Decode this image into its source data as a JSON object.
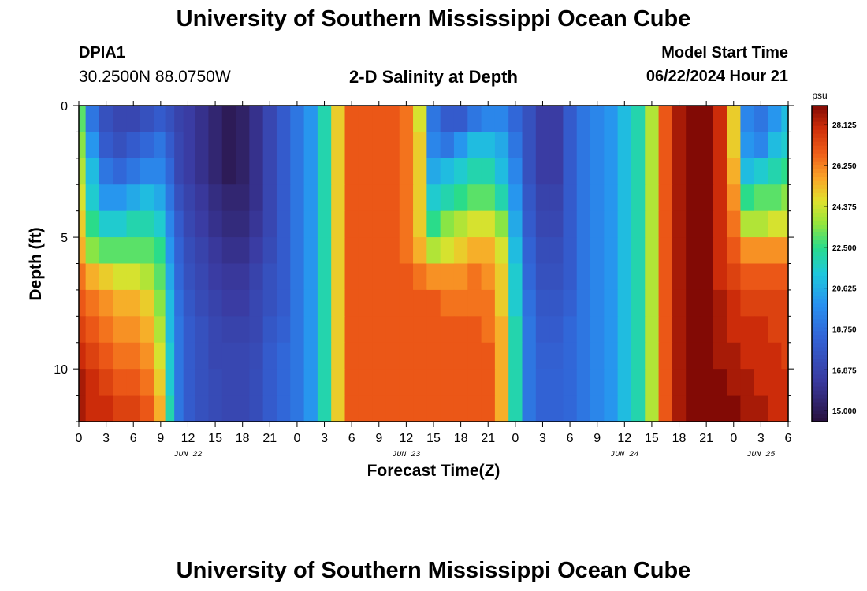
{
  "page": {
    "title": "University of Southern Mississippi Ocean Cube",
    "footer_title": "University of Southern Mississippi Ocean Cube",
    "station_id": "DPIA1",
    "station_coords": "30.2500N  88.0750W",
    "plot_title": "2-D Salinity at Depth",
    "model_start_label": "Model Start Time",
    "model_start_value": "06/22/2024 Hour 21"
  },
  "chart_data": {
    "type": "heatmap",
    "title": "2-D Salinity at Depth",
    "xlabel": "Forecast Time(Z)",
    "ylabel": "Depth (ft)",
    "x_range_hours": [
      0,
      78
    ],
    "y_range_ft": [
      0,
      12
    ],
    "y_ticks": [
      "0",
      "5",
      "10"
    ],
    "x_ticks": [
      "0",
      "3",
      "6",
      "9",
      "12",
      "15",
      "18",
      "21",
      "0",
      "3",
      "6",
      "9",
      "12",
      "15",
      "18",
      "21",
      "0",
      "3",
      "6",
      "9",
      "12",
      "15",
      "18",
      "21",
      "0",
      "3",
      "6"
    ],
    "day_labels": [
      {
        "label": "JUN 22",
        "hour": 12
      },
      {
        "label": "JUN 23",
        "hour": 36
      },
      {
        "label": "JUN 24",
        "hour": 60
      },
      {
        "label": "JUN 25",
        "hour": 75
      }
    ],
    "colorbar": {
      "unit": "psu",
      "min": 14.5,
      "max": 29.0,
      "labels": [
        "28.125",
        "26.250",
        "24.375",
        "22.500",
        "20.625",
        "18.750",
        "16.875",
        "15.000"
      ]
    },
    "depth_levels_ft": [
      0.5,
      1.5,
      2.5,
      3.5,
      4.5,
      5.5,
      6.5,
      7.5,
      8.5,
      9.5,
      10.5,
      11.5
    ],
    "time_hours": [
      0,
      1.5,
      3,
      4.5,
      6,
      7.5,
      9,
      10,
      11,
      12,
      13.5,
      15,
      16.5,
      18,
      19.5,
      21,
      22.5,
      24,
      25.5,
      27,
      28.5,
      30,
      31.5,
      33,
      34.5,
      36,
      37.5,
      39,
      40.5,
      42,
      43.5,
      45,
      46.5,
      48,
      49.5,
      51,
      52.5,
      54,
      55.5,
      57,
      58.5,
      60,
      61.5,
      63,
      64.5,
      66,
      67.5,
      69,
      70.5,
      72,
      73.5,
      75,
      76.5,
      78
    ],
    "salinity_psu": [
      [
        23.0,
        19.0,
        17.5,
        17.0,
        17.0,
        17.5,
        18.0,
        17.5,
        16.8,
        16.5,
        16.0,
        15.5,
        15.0,
        15.3,
        16.0,
        17.0,
        18.0,
        19.0,
        20.0,
        22.0,
        25.0,
        27.0,
        27.0,
        27.0,
        27.0,
        26.5,
        24.5,
        19.0,
        18.0,
        18.0,
        19.0,
        19.5,
        19.5,
        18.5,
        17.5,
        16.5,
        16.5,
        18.0,
        19.0,
        19.5,
        20.0,
        21.0,
        22.0,
        24.0,
        27.0,
        28.5,
        29.0,
        29.0,
        28.0,
        25.0,
        19.5,
        19.0,
        20.0,
        21.0
      ],
      [
        23.5,
        20.0,
        18.0,
        17.5,
        18.0,
        18.5,
        19.0,
        18.0,
        17.0,
        16.5,
        16.0,
        15.5,
        15.0,
        15.3,
        16.0,
        17.0,
        18.0,
        19.0,
        20.0,
        22.0,
        25.0,
        27.0,
        27.0,
        27.0,
        27.0,
        26.5,
        25.0,
        19.5,
        19.0,
        20.0,
        21.0,
        21.0,
        20.5,
        19.0,
        17.5,
        16.5,
        16.5,
        18.0,
        19.0,
        19.5,
        20.0,
        21.0,
        22.0,
        24.0,
        27.0,
        28.5,
        29.0,
        29.0,
        28.0,
        25.0,
        20.0,
        19.5,
        21.0,
        21.5
      ],
      [
        24.0,
        21.0,
        19.0,
        18.5,
        19.0,
        19.5,
        19.5,
        18.5,
        17.0,
        16.5,
        16.0,
        15.5,
        15.0,
        15.3,
        16.0,
        17.0,
        18.0,
        19.0,
        20.0,
        22.0,
        25.0,
        27.0,
        27.0,
        27.0,
        27.0,
        26.5,
        25.0,
        20.5,
        21.0,
        21.5,
        22.0,
        22.0,
        21.0,
        19.5,
        17.5,
        16.5,
        16.5,
        18.0,
        19.0,
        19.5,
        20.0,
        21.0,
        22.0,
        24.0,
        27.0,
        28.5,
        29.0,
        29.0,
        28.0,
        25.5,
        21.0,
        21.5,
        22.0,
        22.5
      ],
      [
        24.5,
        21.5,
        20.0,
        20.0,
        20.5,
        21.0,
        20.5,
        19.0,
        17.5,
        16.8,
        16.3,
        15.8,
        15.5,
        15.5,
        16.0,
        17.0,
        18.0,
        19.0,
        20.0,
        22.0,
        25.0,
        27.0,
        27.0,
        27.0,
        27.0,
        26.5,
        25.0,
        21.5,
        22.0,
        22.5,
        23.0,
        23.0,
        22.0,
        20.0,
        17.8,
        16.8,
        16.8,
        18.0,
        19.0,
        19.5,
        20.0,
        21.0,
        22.0,
        24.0,
        27.0,
        28.5,
        29.0,
        29.0,
        28.0,
        26.0,
        22.5,
        23.0,
        23.0,
        23.5
      ],
      [
        25.0,
        22.5,
        21.5,
        21.5,
        22.0,
        22.0,
        21.5,
        19.5,
        18.0,
        17.0,
        16.5,
        16.0,
        15.7,
        15.7,
        16.2,
        17.0,
        18.0,
        19.0,
        20.0,
        22.0,
        25.0,
        27.0,
        27.0,
        27.0,
        27.0,
        26.5,
        25.0,
        22.5,
        23.5,
        24.0,
        24.5,
        24.5,
        23.5,
        20.5,
        18.0,
        17.0,
        17.0,
        18.0,
        19.0,
        19.5,
        20.0,
        21.0,
        22.0,
        24.0,
        27.0,
        28.5,
        29.0,
        29.0,
        28.0,
        26.5,
        24.0,
        24.0,
        24.5,
        24.5
      ],
      [
        25.5,
        23.5,
        23.0,
        23.0,
        23.0,
        23.0,
        22.5,
        20.0,
        18.3,
        17.3,
        16.8,
        16.3,
        16.0,
        16.0,
        16.5,
        17.2,
        18.0,
        19.0,
        20.0,
        22.0,
        25.0,
        27.0,
        27.0,
        27.0,
        27.0,
        26.5,
        25.5,
        24.0,
        24.5,
        25.0,
        25.5,
        25.5,
        24.5,
        21.0,
        18.3,
        17.3,
        17.3,
        18.0,
        19.0,
        19.5,
        20.0,
        21.0,
        22.0,
        24.0,
        27.0,
        28.5,
        29.0,
        29.0,
        28.0,
        27.0,
        26.0,
        26.0,
        26.0,
        26.0
      ],
      [
        26.5,
        25.5,
        25.0,
        24.5,
        24.5,
        24.0,
        23.0,
        20.5,
        18.5,
        17.5,
        17.0,
        16.5,
        16.3,
        16.3,
        16.8,
        17.5,
        18.0,
        19.0,
        20.0,
        22.0,
        25.0,
        27.0,
        27.0,
        27.0,
        27.0,
        27.0,
        26.5,
        26.0,
        26.0,
        26.0,
        26.5,
        26.0,
        25.0,
        21.5,
        18.5,
        17.5,
        17.5,
        18.0,
        19.0,
        19.5,
        20.0,
        21.0,
        22.0,
        24.0,
        27.0,
        28.5,
        29.0,
        29.0,
        28.0,
        27.5,
        27.0,
        27.0,
        27.0,
        27.0
      ],
      [
        27.0,
        26.5,
        26.0,
        25.5,
        25.5,
        25.0,
        23.5,
        21.0,
        18.8,
        17.8,
        17.2,
        16.8,
        16.5,
        16.5,
        17.0,
        17.5,
        18.0,
        19.0,
        20.0,
        22.0,
        25.0,
        27.0,
        27.0,
        27.0,
        27.0,
        27.0,
        27.0,
        27.0,
        26.5,
        26.5,
        26.5,
        26.5,
        25.0,
        21.5,
        18.8,
        17.8,
        17.8,
        18.2,
        19.0,
        19.5,
        20.0,
        21.0,
        22.0,
        24.0,
        27.0,
        28.5,
        29.0,
        29.0,
        28.5,
        28.0,
        27.5,
        27.5,
        27.5,
        27.5
      ],
      [
        27.5,
        27.0,
        26.5,
        26.0,
        26.0,
        25.5,
        24.0,
        21.0,
        19.0,
        18.0,
        17.5,
        17.0,
        16.8,
        16.8,
        17.0,
        17.8,
        18.2,
        19.0,
        20.0,
        22.0,
        25.0,
        27.0,
        27.0,
        27.0,
        27.0,
        27.0,
        27.0,
        27.0,
        27.0,
        27.0,
        27.0,
        26.5,
        25.5,
        22.0,
        19.0,
        18.0,
        18.0,
        18.5,
        19.0,
        19.5,
        20.0,
        21.0,
        22.0,
        24.0,
        27.0,
        28.5,
        29.0,
        29.0,
        28.5,
        28.0,
        28.0,
        28.0,
        27.5,
        27.5
      ],
      [
        28.0,
        27.5,
        27.0,
        26.5,
        26.5,
        26.0,
        24.5,
        21.5,
        19.0,
        18.0,
        17.5,
        17.0,
        17.0,
        17.0,
        17.2,
        18.0,
        18.5,
        19.0,
        20.0,
        22.0,
        25.0,
        27.0,
        27.0,
        27.0,
        27.0,
        27.0,
        27.0,
        27.0,
        27.0,
        27.0,
        27.0,
        27.0,
        25.5,
        22.0,
        19.0,
        18.2,
        18.2,
        18.5,
        19.0,
        19.5,
        20.0,
        21.0,
        22.0,
        24.0,
        27.0,
        28.5,
        29.0,
        29.0,
        28.5,
        28.5,
        28.0,
        28.0,
        28.0,
        27.5
      ],
      [
        28.5,
        28.0,
        27.5,
        27.0,
        27.0,
        26.5,
        25.0,
        21.5,
        19.0,
        18.0,
        17.5,
        17.2,
        17.0,
        17.0,
        17.3,
        18.0,
        18.5,
        19.0,
        20.0,
        22.0,
        25.0,
        27.0,
        27.0,
        27.0,
        27.0,
        27.0,
        27.0,
        27.0,
        27.0,
        27.0,
        27.0,
        27.0,
        25.5,
        22.0,
        19.0,
        18.3,
        18.3,
        18.5,
        19.0,
        19.5,
        20.0,
        21.0,
        22.0,
        24.0,
        27.0,
        28.5,
        29.0,
        29.0,
        29.0,
        28.5,
        28.5,
        28.0,
        28.0,
        28.0
      ],
      [
        28.5,
        28.0,
        28.0,
        27.5,
        27.5,
        27.0,
        25.5,
        22.0,
        19.0,
        18.0,
        17.5,
        17.2,
        17.0,
        17.0,
        17.3,
        18.0,
        18.5,
        19.0,
        20.0,
        22.0,
        25.0,
        27.0,
        27.0,
        27.0,
        27.0,
        27.0,
        27.0,
        27.0,
        27.0,
        27.0,
        27.0,
        27.0,
        25.5,
        22.0,
        19.0,
        18.3,
        18.3,
        18.5,
        19.0,
        19.5,
        20.0,
        21.0,
        22.0,
        24.0,
        27.0,
        28.5,
        29.0,
        29.0,
        29.0,
        29.0,
        28.5,
        28.5,
        28.0,
        28.0
      ]
    ]
  }
}
